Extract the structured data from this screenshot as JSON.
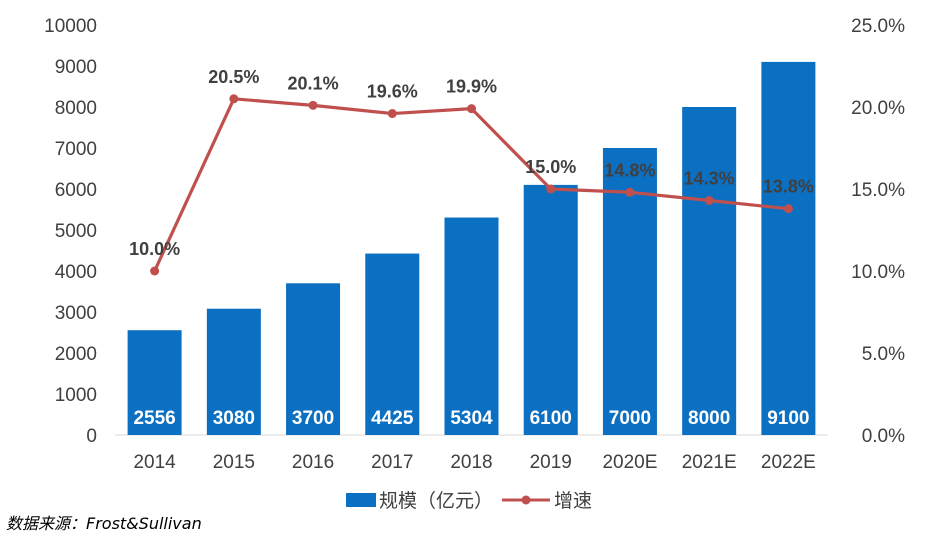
{
  "chart_data": {
    "type": "bar",
    "categories": [
      "2014",
      "2015",
      "2016",
      "2017",
      "2018",
      "2019",
      "2020E",
      "2021E",
      "2022E"
    ],
    "series": [
      {
        "name": "规模（亿元）",
        "type": "bar",
        "axis": "left",
        "values": [
          2556,
          3080,
          3700,
          4425,
          5304,
          6100,
          7000,
          8000,
          9100
        ],
        "labels": [
          "2556",
          "3080",
          "3700",
          "4425",
          "5304",
          "6100",
          "7000",
          "8000",
          "9100"
        ]
      },
      {
        "name": "增速",
        "type": "line",
        "axis": "right",
        "values": [
          10.0,
          20.5,
          20.1,
          19.6,
          19.9,
          15.0,
          14.8,
          14.3,
          13.8
        ],
        "labels": [
          "10.0%",
          "20.5%",
          "20.1%",
          "19.6%",
          "19.9%",
          "15.0%",
          "14.8%",
          "14.3%",
          "13.8%"
        ]
      }
    ],
    "y_left": {
      "ylim": [
        0,
        10000
      ],
      "ticks": [
        "0",
        "1000",
        "2000",
        "3000",
        "4000",
        "5000",
        "6000",
        "7000",
        "8000",
        "9000",
        "10000"
      ]
    },
    "y_right": {
      "ylim": [
        0,
        25
      ],
      "ticks": [
        "0.0%",
        "5.0%",
        "10.0%",
        "15.0%",
        "20.0%",
        "25.0%"
      ]
    },
    "grid": false,
    "legend": "bottom",
    "colors": {
      "bar": "#0b6fc2",
      "line": "#c0504d"
    }
  },
  "source_note": "数据来源：Frost&Sullivan"
}
